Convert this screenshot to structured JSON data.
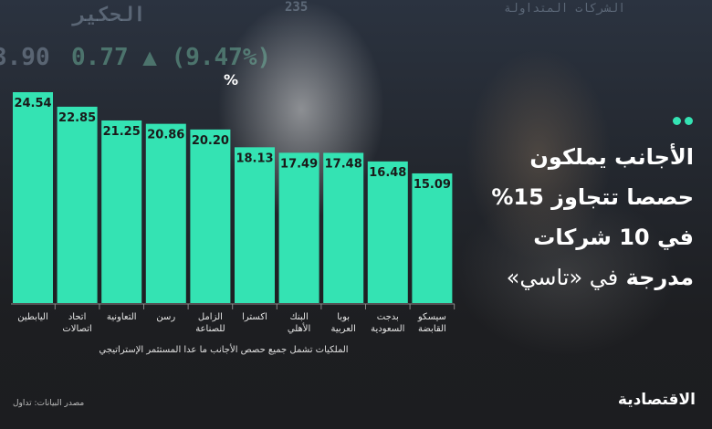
{
  "headline": {
    "line1": "الأجانب يملكون",
    "line2": "حصصا تتجاوز 15%",
    "line3": "في 10 شركات",
    "line4_bold": "مدرجة",
    "line4_light": "في «تاسي»"
  },
  "background_ticker": {
    "t1": "3.90",
    "t2": "0.77 ▲ (9.47%)",
    "t3": "الحكير",
    "t4": "235",
    "t5": "الشركات المتداولة"
  },
  "footnote": "الملكيات تشمل جميع حصص الأجانب ما عدا المستثمر الإستراتيجي",
  "source": "مصدر البيانات: تداول",
  "logo": "الاقتصادية",
  "colors": {
    "bar": "#34e3b3",
    "background": "#1c1d20",
    "accent": "#34e3b3"
  },
  "chart_data": {
    "type": "bar",
    "unit_label": "%",
    "categories": [
      [
        "اليابطين"
      ],
      [
        "اتحاد",
        "اتصالات"
      ],
      [
        "التعاونية"
      ],
      [
        "رسن"
      ],
      [
        "الزامل",
        "للصناعة"
      ],
      [
        "اكسترا"
      ],
      [
        "البنك",
        "الأهلي"
      ],
      [
        "بوبا",
        "العربية"
      ],
      [
        "بدجت",
        "السعودية"
      ],
      [
        "سيسكو",
        "القابضة"
      ]
    ],
    "values": [
      24.54,
      22.85,
      21.25,
      20.86,
      20.2,
      18.13,
      17.49,
      17.48,
      16.48,
      15.09
    ],
    "value_labels": [
      "24.54",
      "22.85",
      "21.25",
      "20.86",
      "20.20",
      "18.13",
      "17.49",
      "17.48",
      "16.48",
      "15.09"
    ],
    "ylim": [
      0,
      24.54
    ],
    "grid": false,
    "legend": false
  }
}
